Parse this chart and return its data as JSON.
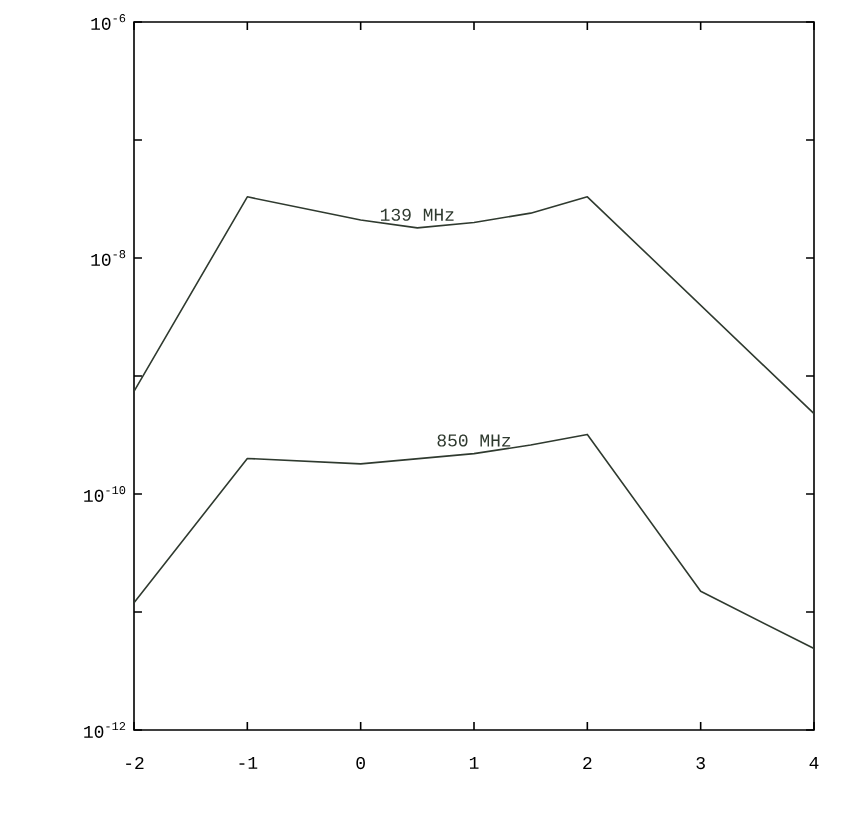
{
  "chart_data": {
    "type": "line",
    "log": "y",
    "series": [
      {
        "name": "139 MHz",
        "color": "#2f3a2f",
        "x": [
          -2,
          -1,
          0,
          0.5,
          1,
          1.5,
          2,
          4
        ],
        "values": [
          7.4e-10,
          3.3e-08,
          2.1e-08,
          1.8e-08,
          2e-08,
          2.4e-08,
          3.3e-08,
          4.8e-10
        ]
      },
      {
        "name": "850 MHz",
        "color": "#2f3a2f",
        "x": [
          -2,
          -1,
          0,
          1,
          1.5,
          2,
          3,
          4
        ],
        "values": [
          1.2e-11,
          2e-10,
          1.8e-10,
          2.2e-10,
          2.6e-10,
          3.2e-10,
          1.5e-11,
          4.9e-12
        ]
      }
    ],
    "xlim": [
      -2,
      4
    ],
    "xticks": [
      -2,
      -1,
      0,
      1,
      2,
      3,
      4
    ],
    "ylim": [
      1e-12,
      1e-06
    ],
    "yticks": [
      {
        "value": 1e-12,
        "label": "10$^{-12}$"
      },
      {
        "value": 1e-11,
        "label": null
      },
      {
        "value": 1e-10,
        "label": "10$^{-10}$"
      },
      {
        "value": 1e-09,
        "label": null
      },
      {
        "value": 1e-08,
        "label": "10$^{-8}$"
      },
      {
        "value": 1e-07,
        "label": null
      },
      {
        "value": 1e-06,
        "label": "10$^{-6}$"
      }
    ],
    "grid": false,
    "legend": false,
    "marker": "none",
    "line_style": "solid"
  }
}
